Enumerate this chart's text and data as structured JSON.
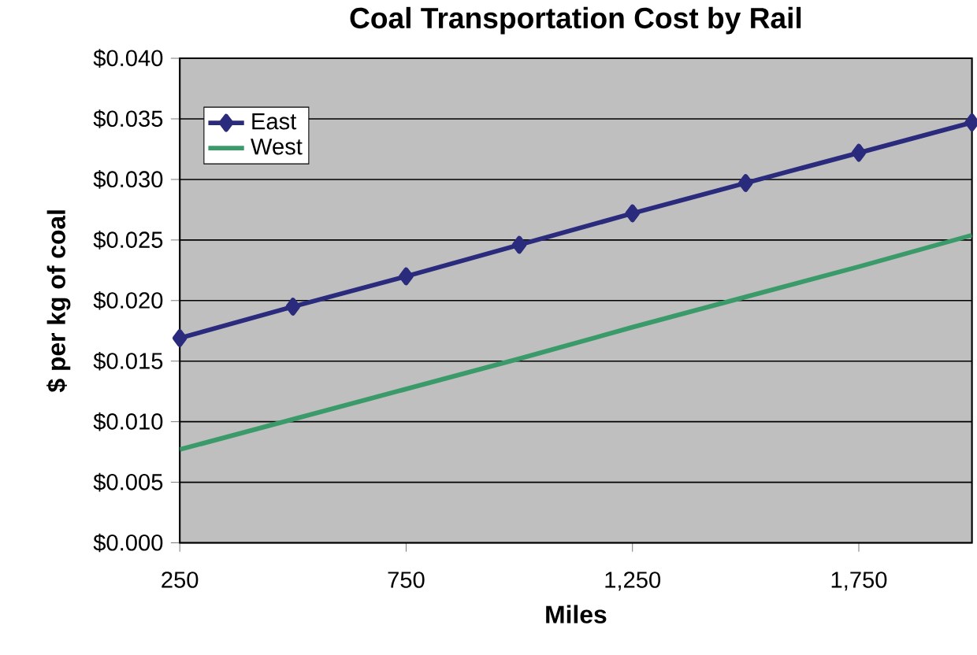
{
  "chart_data": {
    "type": "line",
    "title": "Coal Transportation Cost by Rail",
    "xlabel": "Miles",
    "ylabel": "$ per kg of coal",
    "x": [
      250,
      500,
      750,
      1000,
      1250,
      1500,
      1750,
      2000
    ],
    "series": [
      {
        "name": "East",
        "color": "#2b2b7d",
        "marker": "diamond",
        "values": [
          0.0169,
          0.0195,
          0.022,
          0.0246,
          0.0272,
          0.0297,
          0.0322,
          0.0347
        ]
      },
      {
        "name": "West",
        "color": "#3a9a6a",
        "marker": "none",
        "values": [
          0.0077,
          0.0102,
          0.0127,
          0.0152,
          0.0178,
          0.0203,
          0.0228,
          0.0254
        ]
      }
    ],
    "xlim": [
      250,
      2000
    ],
    "ylim": [
      0,
      0.04
    ],
    "xticks": [
      250,
      750,
      {
        "value": 1250,
        "label": "1,250"
      },
      {
        "value": 1750,
        "label": "1,750"
      }
    ],
    "yticks": [
      {
        "value": 0,
        "label": "$0.000"
      },
      {
        "value": 0.005,
        "label": "$0.005"
      },
      {
        "value": 0.01,
        "label": "$0.010"
      },
      {
        "value": 0.015,
        "label": "$0.015"
      },
      {
        "value": 0.02,
        "label": "$0.020"
      },
      {
        "value": 0.025,
        "label": "$0.025"
      },
      {
        "value": 0.03,
        "label": "$0.030"
      },
      {
        "value": 0.035,
        "label": "$0.035"
      },
      {
        "value": 0.04,
        "label": "$0.040"
      }
    ],
    "grid": "y",
    "legend": "top left",
    "line_style": "solid"
  }
}
